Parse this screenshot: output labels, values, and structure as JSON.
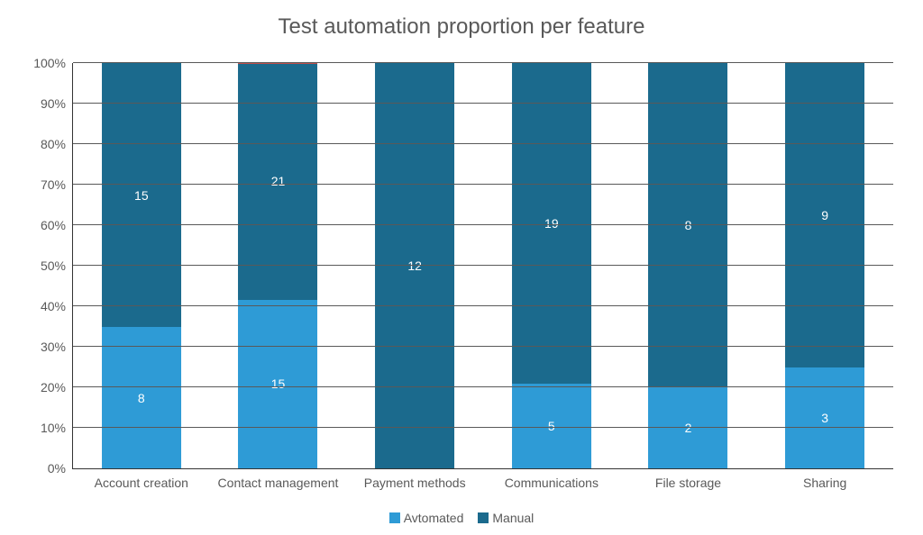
{
  "chart": {
    "type": "bar-stacked-100",
    "title": "Test automation proportion per feature",
    "title_fontsize": 24,
    "title_color": "#595959",
    "background_color": "#ffffff",
    "plot_border_color": "#333333",
    "grid_color": "#595959",
    "label_color": "#595959",
    "label_fontsize": 14,
    "value_label_color": "#ffffff",
    "value_label_fontsize": 14,
    "colors": {
      "automated": "#2e9bd6",
      "manual": "#1b6a8d",
      "red_accent": "#c0504d"
    },
    "ylim": [
      0,
      100
    ],
    "ytick_step": 10,
    "yticks": [
      "0%",
      "10%",
      "20%",
      "30%",
      "40%",
      "50%",
      "60%",
      "70%",
      "80%",
      "90%",
      "100%"
    ],
    "bar_width_pct": 58,
    "categories": [
      {
        "label": "Account creation",
        "automated": 8,
        "manual": 15,
        "red_top": false
      },
      {
        "label": "Contact management",
        "automated": 15,
        "manual": 21,
        "red_top": true
      },
      {
        "label": "Payment methods",
        "automated": 0,
        "manual": 12,
        "red_top": false
      },
      {
        "label": "Communications",
        "automated": 5,
        "manual": 19,
        "red_top": false
      },
      {
        "label": "File storage",
        "automated": 2,
        "manual": 8,
        "red_top": false
      },
      {
        "label": "Sharing",
        "automated": 3,
        "manual": 9,
        "red_top": false
      }
    ],
    "legend": {
      "items": [
        {
          "label": "Avtomated",
          "color_key": "automated"
        },
        {
          "label": "Manual",
          "color_key": "manual"
        }
      ]
    }
  }
}
